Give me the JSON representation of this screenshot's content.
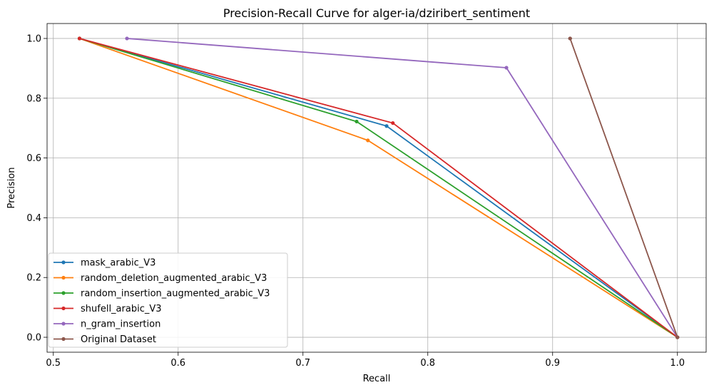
{
  "chart_data": {
    "type": "line",
    "title": "Precision-Recall Curve for alger-ia/dziribert_sentiment",
    "xlabel": "Recall",
    "ylabel": "Precision",
    "xlim": [
      0.495,
      1.023
    ],
    "ylim": [
      -0.05,
      1.05
    ],
    "xticks": [
      0.5,
      0.6,
      0.7,
      0.8,
      0.9,
      1.0
    ],
    "xtick_labels": [
      "0.5",
      "0.6",
      "0.7",
      "0.8",
      "0.9",
      "1.0"
    ],
    "yticks": [
      0.0,
      0.2,
      0.4,
      0.6,
      0.8,
      1.0
    ],
    "ytick_labels": [
      "0.0",
      "0.2",
      "0.4",
      "0.6",
      "0.8",
      "1.0"
    ],
    "grid": true,
    "legend_position": "lower-left",
    "series": [
      {
        "name": "mask_arabic_V3",
        "color": "#1f77b4",
        "x": [
          0.521,
          0.767,
          1.0
        ],
        "y": [
          1.0,
          0.707,
          0.0
        ]
      },
      {
        "name": "random_deletion_augmented_arabic_V3",
        "color": "#ff7f0e",
        "x": [
          0.521,
          0.752,
          1.0
        ],
        "y": [
          1.0,
          0.659,
          0.0
        ]
      },
      {
        "name": "random_insertion_augmented_arabic_V3",
        "color": "#2ca02c",
        "x": [
          0.521,
          0.743,
          1.0
        ],
        "y": [
          1.0,
          0.722,
          0.0
        ]
      },
      {
        "name": "shufell_arabic_V3",
        "color": "#d62728",
        "x": [
          0.521,
          0.772,
          1.0
        ],
        "y": [
          1.0,
          0.717,
          0.0
        ]
      },
      {
        "name": "n_gram_insertion",
        "color": "#9467bd",
        "x": [
          0.559,
          0.863,
          1.0
        ],
        "y": [
          1.0,
          0.902,
          0.0
        ]
      },
      {
        "name": "Original Dataset",
        "color": "#8c564b",
        "x": [
          0.914,
          0.914,
          1.0
        ],
        "y": [
          1.0,
          1.0,
          0.0
        ]
      }
    ]
  }
}
